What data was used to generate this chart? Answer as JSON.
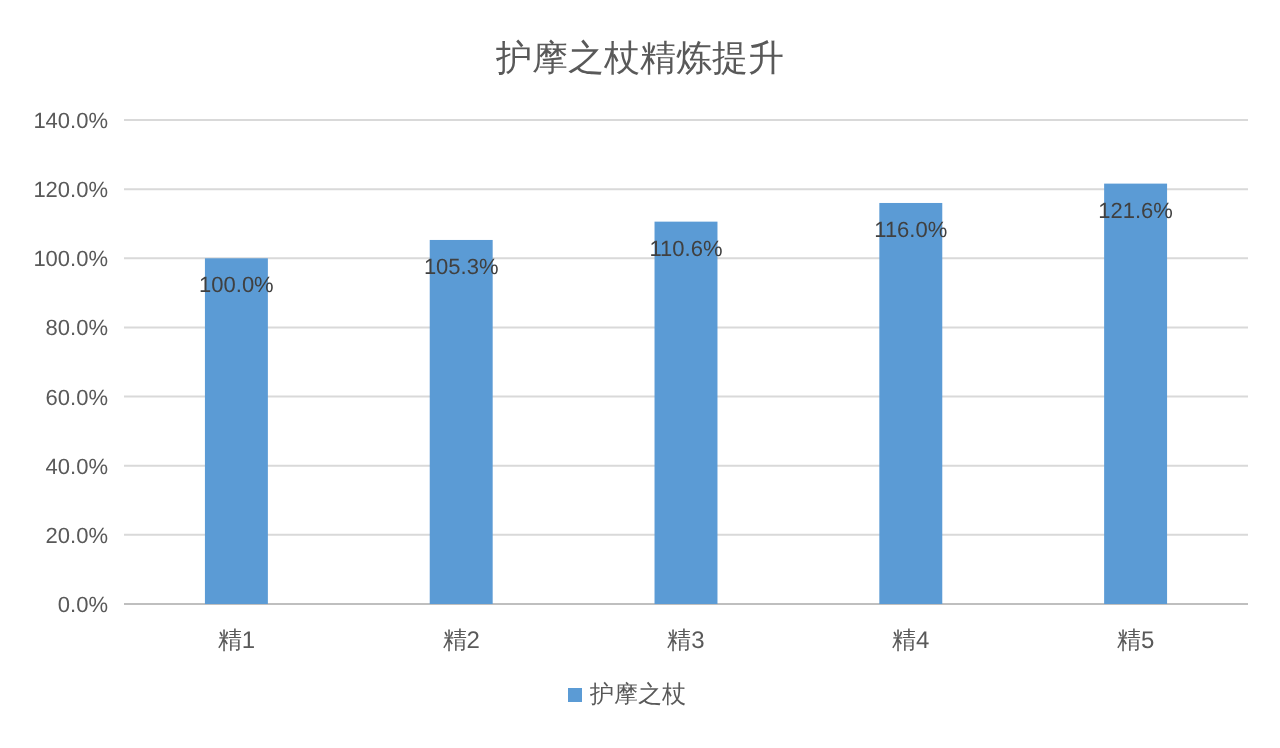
{
  "chart_data": {
    "type": "bar",
    "title": "护摩之杖精炼提升",
    "categories": [
      "精1",
      "精2",
      "精3",
      "精4",
      "精5"
    ],
    "series": [
      {
        "name": "护摩之杖",
        "color": "#5b9bd5",
        "values": [
          100.0,
          105.3,
          110.6,
          116.0,
          121.6
        ],
        "value_labels": [
          "100.0%",
          "105.3%",
          "110.6%",
          "116.0%",
          "121.6%"
        ]
      }
    ],
    "ylim": [
      0,
      140
    ],
    "yticks": [
      {
        "value": 0,
        "label": "0.0%"
      },
      {
        "value": 20,
        "label": "20.0%"
      },
      {
        "value": 40,
        "label": "40.0%"
      },
      {
        "value": 60,
        "label": "60.0%"
      },
      {
        "value": 80,
        "label": "80.0%"
      },
      {
        "value": 100,
        "label": "100.0%"
      },
      {
        "value": 120,
        "label": "120.0%"
      },
      {
        "value": 140,
        "label": "140.0%"
      }
    ],
    "grid": "y",
    "legend": "bottom"
  }
}
